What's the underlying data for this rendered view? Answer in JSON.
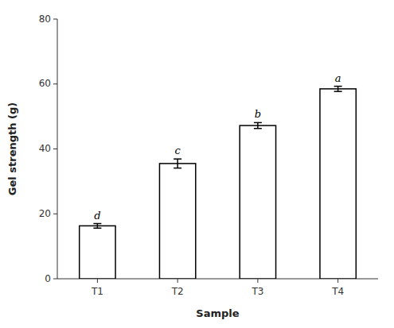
{
  "chart_data": {
    "type": "bar",
    "xlabel": "Sample",
    "ylabel": "Gel strength (g)",
    "categories": [
      "T1",
      "T2",
      "T3",
      "T4"
    ],
    "values": [
      16.3,
      35.5,
      47.2,
      58.5
    ],
    "errors": [
      0.7,
      1.4,
      0.9,
      0.8
    ],
    "letters": [
      "d",
      "c",
      "b",
      "a"
    ],
    "color": "#ffffff",
    "ylim": [
      0,
      80
    ],
    "yticks": [
      0,
      20,
      40,
      60,
      80
    ],
    "grid": false
  }
}
